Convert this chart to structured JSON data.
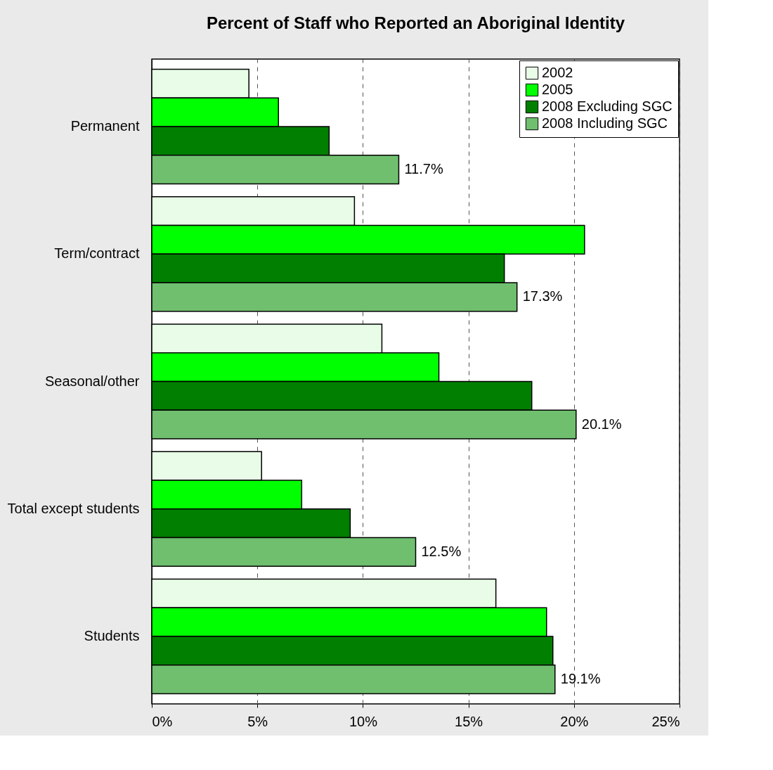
{
  "chart_data": {
    "type": "bar",
    "orientation": "horizontal",
    "title": "Percent of Staff who Reported an Aboriginal Identity",
    "categories": [
      "Permanent",
      "Term/contract",
      "Seasonal/other",
      "Total except students",
      "Students"
    ],
    "series": [
      {
        "name": "2002",
        "color": "#e8fce8",
        "values": [
          4.6,
          9.6,
          10.9,
          5.2,
          16.3
        ]
      },
      {
        "name": "2005",
        "color": "#00ff00",
        "values": [
          6.0,
          20.5,
          13.6,
          7.1,
          18.7
        ]
      },
      {
        "name": "2008 Excluding SGC",
        "color": "#007f00",
        "values": [
          8.4,
          16.7,
          18.0,
          9.4,
          19.0
        ]
      },
      {
        "name": "2008 Including SGC",
        "color": "#6fbf6f",
        "values": [
          11.7,
          17.3,
          20.1,
          12.5,
          19.1
        ],
        "value_labels": [
          "11.7%",
          "17.3%",
          "20.1%",
          "12.5%",
          "19.1%"
        ]
      }
    ],
    "xlim": [
      0,
      25
    ],
    "xticks": [
      {
        "value": 0,
        "label": "0%"
      },
      {
        "value": 5,
        "label": "5%"
      },
      {
        "value": 10,
        "label": "10%"
      },
      {
        "value": 15,
        "label": "15%"
      },
      {
        "value": 20,
        "label": "20%"
      },
      {
        "value": 25,
        "label": "25%"
      }
    ],
    "grid": "x",
    "legend": "top right"
  }
}
